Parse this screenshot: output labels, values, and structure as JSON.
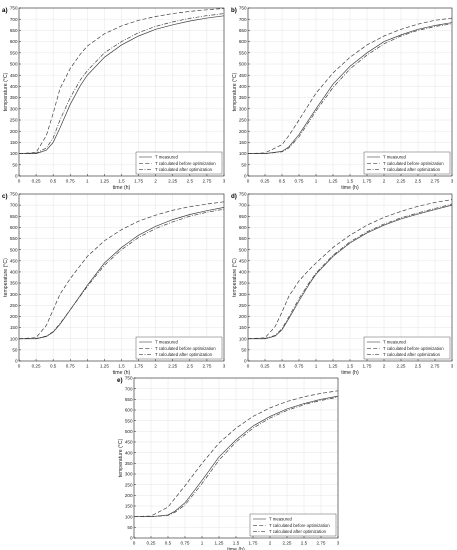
{
  "style": {
    "grid_color": "#e6e6e6",
    "axis_color": "#262626",
    "line_color": "#404040",
    "legend_border": "#333333"
  },
  "chart_data": [
    {
      "panel_label": "a)",
      "type": "line",
      "grid": true,
      "legend_position": "bottom-right",
      "xlabel": "time (h)",
      "ylabel": "temperature (°C)",
      "xlim": [
        0,
        3
      ],
      "ylim": [
        0,
        750
      ],
      "xticks": [
        0,
        0.25,
        0.5,
        0.75,
        1,
        1.25,
        1.5,
        1.75,
        2,
        2.25,
        2.5,
        2.75,
        3
      ],
      "xtick_labels": [
        "0",
        "0.25",
        "0.5",
        "0.75",
        "1",
        "1.25",
        "1.5",
        "1.75",
        "2",
        "2.25",
        "2.5",
        "2.75",
        "3"
      ],
      "yticks": [
        0,
        50,
        100,
        150,
        200,
        250,
        300,
        350,
        400,
        450,
        500,
        550,
        600,
        650,
        700,
        750
      ],
      "ytick_labels": [
        "0",
        "50",
        "100",
        "150",
        "200",
        "250",
        "300",
        "350",
        "400",
        "450",
        "500",
        "550",
        "600",
        "650",
        "700",
        "750"
      ],
      "x": [
        0,
        0.25,
        0.4,
        0.5,
        0.6,
        0.75,
        0.9,
        1,
        1.25,
        1.5,
        1.75,
        2,
        2.25,
        2.5,
        2.75,
        3
      ],
      "series": [
        {
          "name": "T measured",
          "dash": "solid",
          "values": [
            100,
            100,
            115,
            150,
            215,
            320,
            405,
            450,
            530,
            585,
            625,
            655,
            675,
            692,
            705,
            715
          ]
        },
        {
          "name": "T calculated before optimization",
          "dash": "dash",
          "values": [
            100,
            105,
            180,
            280,
            390,
            480,
            545,
            580,
            635,
            670,
            695,
            712,
            725,
            735,
            742,
            748
          ]
        },
        {
          "name": "T calculated after optimization",
          "dash": "dashdot",
          "values": [
            100,
            102,
            125,
            170,
            250,
            350,
            430,
            470,
            550,
            600,
            640,
            668,
            688,
            704,
            716,
            725
          ]
        }
      ]
    },
    {
      "panel_label": "b)",
      "type": "line",
      "grid": true,
      "legend_position": "bottom-right",
      "xlabel": "time (h)",
      "ylabel": "temperature (°C)",
      "xlim": [
        0,
        3
      ],
      "ylim": [
        0,
        750
      ],
      "xticks": [
        0,
        0.25,
        0.5,
        0.75,
        1,
        1.25,
        1.5,
        1.75,
        2,
        2.25,
        2.5,
        2.75,
        3
      ],
      "xtick_labels": [
        "0",
        "0.25",
        "0.5",
        "0.75",
        "1",
        "1.25",
        "1.5",
        "1.75",
        "2",
        "2.25",
        "2.5",
        "2.75",
        "3"
      ],
      "yticks": [
        0,
        50,
        100,
        150,
        200,
        250,
        300,
        350,
        400,
        450,
        500,
        550,
        600,
        650,
        700,
        750
      ],
      "ytick_labels": [
        "0",
        "50",
        "100",
        "150",
        "200",
        "250",
        "300",
        "350",
        "400",
        "450",
        "500",
        "550",
        "600",
        "650",
        "700",
        "750"
      ],
      "x": [
        0,
        0.25,
        0.5,
        0.6,
        0.75,
        1,
        1.25,
        1.5,
        1.75,
        2,
        2.25,
        2.5,
        2.75,
        3
      ],
      "series": [
        {
          "name": "T measured",
          "dash": "solid",
          "values": [
            100,
            100,
            110,
            130,
            185,
            300,
            410,
            490,
            550,
            600,
            630,
            655,
            672,
            685
          ]
        },
        {
          "name": "T calculated before optimization",
          "dash": "dash",
          "values": [
            100,
            103,
            140,
            180,
            250,
            370,
            460,
            530,
            585,
            625,
            655,
            678,
            695,
            705
          ]
        },
        {
          "name": "T calculated after optimization",
          "dash": "dashdot",
          "values": [
            100,
            100,
            108,
            125,
            175,
            290,
            395,
            478,
            540,
            590,
            625,
            650,
            667,
            680
          ]
        }
      ]
    },
    {
      "panel_label": "c)",
      "type": "line",
      "grid": true,
      "legend_position": "bottom-right",
      "xlabel": "time (h)",
      "ylabel": "temperature (°C)",
      "xlim": [
        0,
        3
      ],
      "ylim": [
        0,
        750
      ],
      "xticks": [
        0,
        0.25,
        0.5,
        0.75,
        1,
        1.25,
        1.5,
        1.75,
        2,
        2.25,
        2.5,
        2.75,
        3
      ],
      "xtick_labels": [
        "0",
        "0.25",
        "0.5",
        "0.75",
        "1",
        "1.25",
        "1.5",
        "1.75",
        "2",
        "2.25",
        "2.5",
        "2.75",
        "3"
      ],
      "yticks": [
        0,
        50,
        100,
        150,
        200,
        250,
        300,
        350,
        400,
        450,
        500,
        550,
        600,
        650,
        700,
        750
      ],
      "ytick_labels": [
        "0",
        "50",
        "100",
        "150",
        "200",
        "250",
        "300",
        "350",
        "400",
        "450",
        "500",
        "550",
        "600",
        "650",
        "700",
        "750"
      ],
      "x": [
        0,
        0.25,
        0.4,
        0.5,
        0.6,
        0.75,
        1,
        1.25,
        1.5,
        1.75,
        2,
        2.25,
        2.5,
        2.75,
        3
      ],
      "series": [
        {
          "name": "T measured",
          "dash": "solid",
          "values": [
            100,
            100,
            110,
            130,
            165,
            230,
            340,
            440,
            510,
            565,
            605,
            635,
            658,
            675,
            690
          ]
        },
        {
          "name": "T calculated before optimization",
          "dash": "dash",
          "values": [
            100,
            105,
            160,
            230,
            300,
            370,
            470,
            540,
            590,
            628,
            655,
            677,
            693,
            705,
            715
          ]
        },
        {
          "name": "T calculated after optimization",
          "dash": "dashdot",
          "values": [
            100,
            101,
            112,
            132,
            168,
            230,
            335,
            430,
            500,
            555,
            595,
            625,
            650,
            668,
            682
          ]
        }
      ]
    },
    {
      "panel_label": "d)",
      "type": "line",
      "grid": true,
      "legend_position": "bottom-right",
      "xlabel": "time (h)",
      "ylabel": "temperature (°C)",
      "xlim": [
        0,
        3
      ],
      "ylim": [
        0,
        750
      ],
      "xticks": [
        0,
        0.25,
        0.5,
        0.75,
        1,
        1.25,
        1.5,
        1.75,
        2,
        2.25,
        2.5,
        2.75,
        3
      ],
      "xtick_labels": [
        "0",
        "0.25",
        "0.5",
        "0.75",
        "1",
        "1.25",
        "1.5",
        "1.75",
        "2",
        "2.25",
        "2.5",
        "2.75",
        "3"
      ],
      "yticks": [
        0,
        50,
        100,
        150,
        200,
        250,
        300,
        350,
        400,
        450,
        500,
        550,
        600,
        650,
        700,
        750
      ],
      "ytick_labels": [
        "0",
        "50",
        "100",
        "150",
        "200",
        "250",
        "300",
        "350",
        "400",
        "450",
        "500",
        "550",
        "600",
        "650",
        "700",
        "750"
      ],
      "x": [
        0,
        0.25,
        0.4,
        0.5,
        0.6,
        0.75,
        0.9,
        1,
        1.25,
        1.5,
        1.75,
        2,
        2.25,
        2.5,
        2.75,
        3
      ],
      "series": [
        {
          "name": "T measured",
          "dash": "solid",
          "values": [
            100,
            100,
            112,
            140,
            190,
            270,
            345,
            390,
            470,
            530,
            575,
            610,
            638,
            660,
            680,
            700
          ]
        },
        {
          "name": "T calculated before optimization",
          "dash": "dash",
          "values": [
            100,
            104,
            155,
            220,
            290,
            360,
            410,
            440,
            510,
            565,
            610,
            645,
            672,
            695,
            712,
            725
          ]
        },
        {
          "name": "T calculated after optimization",
          "dash": "dashdot",
          "values": [
            100,
            101,
            115,
            145,
            198,
            280,
            352,
            395,
            475,
            535,
            580,
            615,
            643,
            665,
            685,
            705
          ]
        }
      ]
    },
    {
      "panel_label": "e)",
      "type": "line",
      "grid": true,
      "legend_position": "bottom-right",
      "xlabel": "time (h)",
      "ylabel": "temperature (°C)",
      "xlim": [
        0,
        3
      ],
      "ylim": [
        0,
        750
      ],
      "xticks": [
        0,
        0.25,
        0.5,
        0.75,
        1,
        1.25,
        1.5,
        1.75,
        2,
        2.25,
        2.5,
        2.75,
        3
      ],
      "xtick_labels": [
        "0",
        "0.25",
        "0.5",
        "0.75",
        "1",
        "1.25",
        "1.5",
        "1.75",
        "2",
        "2.25",
        "2.5",
        "2.75",
        "3"
      ],
      "yticks": [
        0,
        50,
        100,
        150,
        200,
        250,
        300,
        350,
        400,
        450,
        500,
        550,
        600,
        650,
        700,
        750
      ],
      "ytick_labels": [
        "0",
        "50",
        "100",
        "150",
        "200",
        "250",
        "300",
        "350",
        "400",
        "450",
        "500",
        "550",
        "600",
        "650",
        "700",
        "750"
      ],
      "x": [
        0,
        0.25,
        0.5,
        0.6,
        0.75,
        1,
        1.25,
        1.5,
        1.75,
        2,
        2.25,
        2.5,
        2.75,
        3
      ],
      "series": [
        {
          "name": "T measured",
          "dash": "solid",
          "values": [
            100,
            100,
            108,
            125,
            165,
            270,
            380,
            460,
            525,
            570,
            605,
            630,
            650,
            665
          ]
        },
        {
          "name": "T calculated before optimization",
          "dash": "dash",
          "values": [
            100,
            103,
            145,
            185,
            245,
            350,
            445,
            515,
            570,
            610,
            640,
            662,
            678,
            690
          ]
        },
        {
          "name": "T calculated after optimization",
          "dash": "dashdot",
          "values": [
            100,
            100,
            106,
            120,
            155,
            255,
            365,
            450,
            515,
            562,
            598,
            625,
            645,
            660
          ]
        }
      ]
    }
  ]
}
